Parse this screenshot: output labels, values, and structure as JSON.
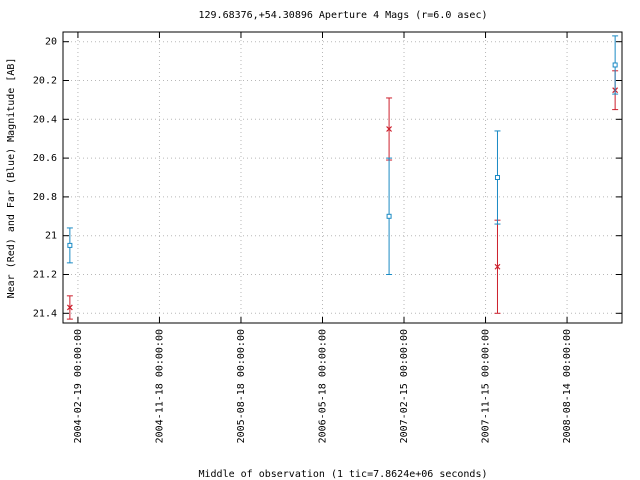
{
  "chart_data": {
    "type": "errorbar",
    "title": "129.68376,+54.30896   Aperture 4 Mags (r=6.0 asec)",
    "x_label": "Middle of observation (1 tic=7.8624e+06 seconds)",
    "y_label": "Near (Red) and Far (Blue) Magnitude [AB]",
    "xlim": [
      "2003-12-31",
      "2009-02-14"
    ],
    "xticks": [
      {
        "value": "2004-02-19",
        "label": "2004-02-19 00:00:00"
      },
      {
        "value": "2004-11-18",
        "label": "2004-11-18 00:00:00"
      },
      {
        "value": "2005-08-18",
        "label": "2005-08-18 00:00:00"
      },
      {
        "value": "2006-05-18",
        "label": "2006-05-18 00:00:00"
      },
      {
        "value": "2007-02-15",
        "label": "2007-02-15 00:00:00"
      },
      {
        "value": "2007-11-15",
        "label": "2007-11-15 00:00:00"
      },
      {
        "value": "2008-08-14",
        "label": "2008-08-14 00:00:00"
      }
    ],
    "ylim": [
      19.95,
      21.45
    ],
    "y_inverted": true,
    "yticks": [
      20,
      20.2,
      20.4,
      20.6,
      20.8,
      21,
      21.2,
      21.4
    ],
    "grid": true,
    "series": [
      {
        "name": "Near",
        "color": "#cc1f2c",
        "marker": "x",
        "x": [
          "2004-01-23",
          "2006-12-27",
          "2007-12-25",
          "2009-01-22"
        ],
        "values": [
          21.37,
          20.45,
          21.16,
          20.25
        ],
        "errors": [
          0.06,
          0.16,
          0.24,
          0.1
        ]
      },
      {
        "name": "Far",
        "color": "#1a8ac4",
        "marker": "square",
        "x": [
          "2004-01-23",
          "2006-12-27",
          "2007-12-25",
          "2009-01-22"
        ],
        "values": [
          21.05,
          20.9,
          20.7,
          20.12
        ],
        "errors": [
          0.09,
          0.3,
          0.24,
          0.15
        ]
      }
    ]
  }
}
